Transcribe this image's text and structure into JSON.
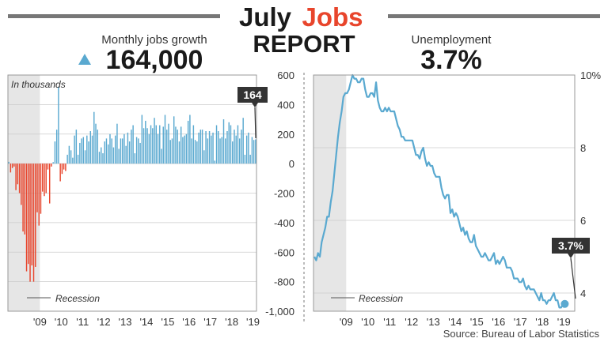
{
  "header": {
    "title_word1": "July",
    "title_word2": "Jobs",
    "title_line2": "REPORT",
    "accent_color": "#e8452c"
  },
  "jobs": {
    "label": "Monthly jobs growth",
    "value": "164,000",
    "arrow": "up-triangle-icon",
    "arrow_color": "#5aa9d0"
  },
  "unemployment": {
    "label": "Unemployment",
    "value": "3.7%"
  },
  "source": "Source: Bureau of Labor Statistics",
  "chart_data": [
    {
      "type": "bar",
      "annotation": "In thousands",
      "recession_label": "Recession",
      "end_label": "164",
      "x_ticks": [
        "'09",
        "'10",
        "'11",
        "'12",
        "'13",
        "'14",
        "'15",
        "'16",
        "'17",
        "'18",
        "'19"
      ],
      "y_ticks": [
        "600",
        "400",
        "200",
        "0",
        "-200",
        "-400",
        "-600",
        "-800",
        "-1,000"
      ],
      "ylim": [
        -1000,
        600
      ],
      "x_start": "2008-01",
      "recession": [
        "2008-01",
        "2009-06"
      ],
      "positive_color": "#5aa9d0",
      "negative_color": "#e8452c",
      "monthly_values": [
        12,
        -60,
        -30,
        -20,
        -180,
        -140,
        -200,
        -280,
        -460,
        -480,
        -730,
        -680,
        -800,
        -690,
        -800,
        -700,
        -330,
        -420,
        -340,
        -190,
        -220,
        -200,
        -40,
        -270,
        -20,
        10,
        150,
        230,
        520,
        -120,
        -70,
        -40,
        -50,
        60,
        120,
        90,
        40,
        190,
        230,
        60,
        140,
        170,
        180,
        90,
        190,
        150,
        220,
        190,
        350,
        270,
        230,
        80,
        110,
        70,
        150,
        170,
        130,
        200,
        170,
        110,
        190,
        270,
        100,
        170,
        170,
        200,
        120,
        210,
        150,
        230,
        260,
        70,
        180,
        170,
        140,
        330,
        240,
        290,
        240,
        200,
        260,
        240,
        310,
        260,
        200,
        260,
        100,
        250,
        330,
        230,
        270,
        160,
        170,
        320,
        250,
        230,
        150,
        250,
        180,
        190,
        200,
        290,
        330,
        170,
        260,
        160,
        150,
        210,
        230,
        230,
        90,
        220,
        170,
        220,
        190,
        210,
        20,
        260,
        220,
        170,
        180,
        300,
        170,
        220,
        280,
        260,
        150,
        230,
        190,
        260,
        170,
        230,
        310,
        60,
        190,
        210,
        60,
        180,
        160,
        164
      ]
    },
    {
      "type": "line",
      "y_ticks": [
        "10%",
        "8",
        "6",
        "4"
      ],
      "x_ticks": [
        "'09",
        "'10",
        "'11",
        "'12",
        "'13",
        "'14",
        "'15",
        "'16",
        "'17",
        "'18",
        "'19"
      ],
      "ylim": [
        3.5,
        10
      ],
      "recession_label": "Recession",
      "end_label": "3.7%",
      "line_color": "#5aa9d0",
      "x_start": "2008-01",
      "recession": [
        "2008-01",
        "2009-06"
      ],
      "monthly_values": [
        5.0,
        4.9,
        5.1,
        5.0,
        5.4,
        5.6,
        5.8,
        6.1,
        6.1,
        6.5,
        6.8,
        7.3,
        7.8,
        8.3,
        8.7,
        9.0,
        9.4,
        9.5,
        9.5,
        9.6,
        9.8,
        10.0,
        9.9,
        9.9,
        9.8,
        9.8,
        9.9,
        9.9,
        9.6,
        9.4,
        9.4,
        9.5,
        9.5,
        9.4,
        9.8,
        9.3,
        9.1,
        9.0,
        9.0,
        9.1,
        9.0,
        9.1,
        9.0,
        9.0,
        9.0,
        8.8,
        8.6,
        8.5,
        8.3,
        8.3,
        8.2,
        8.2,
        8.2,
        8.2,
        8.2,
        8.0,
        7.8,
        7.8,
        7.7,
        7.9,
        8.0,
        7.7,
        7.5,
        7.6,
        7.5,
        7.5,
        7.3,
        7.2,
        7.2,
        7.2,
        6.9,
        6.7,
        6.6,
        6.7,
        6.7,
        6.2,
        6.3,
        6.1,
        6.2,
        6.1,
        5.9,
        5.7,
        5.8,
        5.6,
        5.7,
        5.5,
        5.4,
        5.4,
        5.6,
        5.3,
        5.2,
        5.1,
        5.0,
        5.0,
        5.1,
        5.0,
        4.9,
        4.9,
        5.0,
        5.1,
        4.8,
        4.9,
        4.8,
        4.9,
        5.0,
        4.9,
        4.7,
        4.7,
        4.7,
        4.6,
        4.4,
        4.4,
        4.4,
        4.3,
        4.3,
        4.4,
        4.2,
        4.1,
        4.2,
        4.1,
        4.1,
        4.1,
        4.0,
        3.9,
        3.8,
        4.0,
        3.8,
        3.8,
        3.7,
        3.8,
        3.8,
        3.9,
        4.0,
        3.8,
        3.8,
        3.6,
        3.6,
        3.7,
        3.7
      ]
    }
  ]
}
